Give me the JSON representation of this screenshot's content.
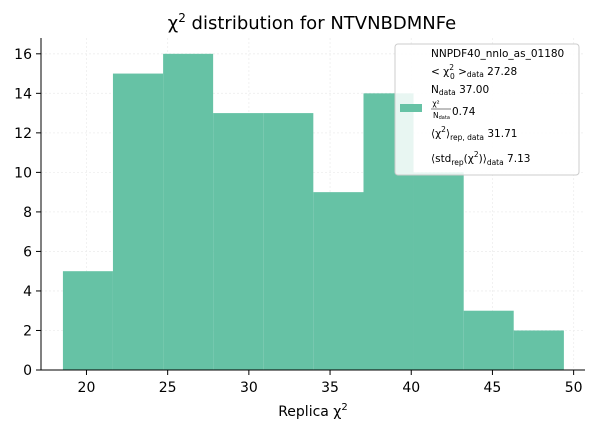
{
  "chart_data": {
    "type": "bar",
    "title_main": "χ",
    "title_sup": "2",
    "title_rest": " distribution for NTVNBDMNFe",
    "xlabel_main": "Replica χ",
    "xlabel_sup": "2",
    "xlim": [
      17.2,
      50.7
    ],
    "ylim": [
      0,
      16.8
    ],
    "bins": [
      {
        "start": 18.55,
        "end": 21.63,
        "count": 5
      },
      {
        "start": 21.63,
        "end": 24.72,
        "count": 15
      },
      {
        "start": 24.72,
        "end": 27.8,
        "count": 16
      },
      {
        "start": 27.8,
        "end": 30.89,
        "count": 13
      },
      {
        "start": 30.89,
        "end": 33.97,
        "count": 13
      },
      {
        "start": 33.97,
        "end": 37.06,
        "count": 9
      },
      {
        "start": 37.06,
        "end": 40.14,
        "count": 14
      },
      {
        "start": 40.14,
        "end": 43.23,
        "count": 10
      },
      {
        "start": 43.23,
        "end": 46.31,
        "count": 3
      },
      {
        "start": 46.31,
        "end": 49.4,
        "count": 2
      }
    ],
    "x_ticks": [
      20,
      25,
      30,
      35,
      40,
      45,
      50
    ],
    "y_ticks": [
      0,
      2,
      4,
      6,
      8,
      10,
      12,
      14,
      16
    ],
    "bar_color": "#66c2a5",
    "grid": "light",
    "legend_position": "top-right",
    "legend": {
      "line1": "NNPDF40_nnlo_as_01180",
      "line2_pre": "< χ",
      "line2_sub": "0",
      "line2_sup": "2",
      "line2_mid": " >",
      "line2_sub2": "data",
      "line2_val": " 27.28",
      "line3_pre": "N",
      "line3_sub": "data",
      "line3_val": " 37.00",
      "line4_num": "χ²",
      "line4_den": "N",
      "line4_den_sub": "data",
      "line4_val": " 0.74",
      "line5_pre": "⟨χ",
      "line5_sup": "2",
      "line5_mid": "⟩",
      "line5_sub": "rep, data",
      "line5_val": " 31.71",
      "line6_pre": "⟨std",
      "line6_sub1": "rep",
      "line6_mid": "(χ",
      "line6_sup": "2",
      "line6_mid2": ")⟩",
      "line6_sub2": "data",
      "line6_val": " 7.13"
    }
  }
}
